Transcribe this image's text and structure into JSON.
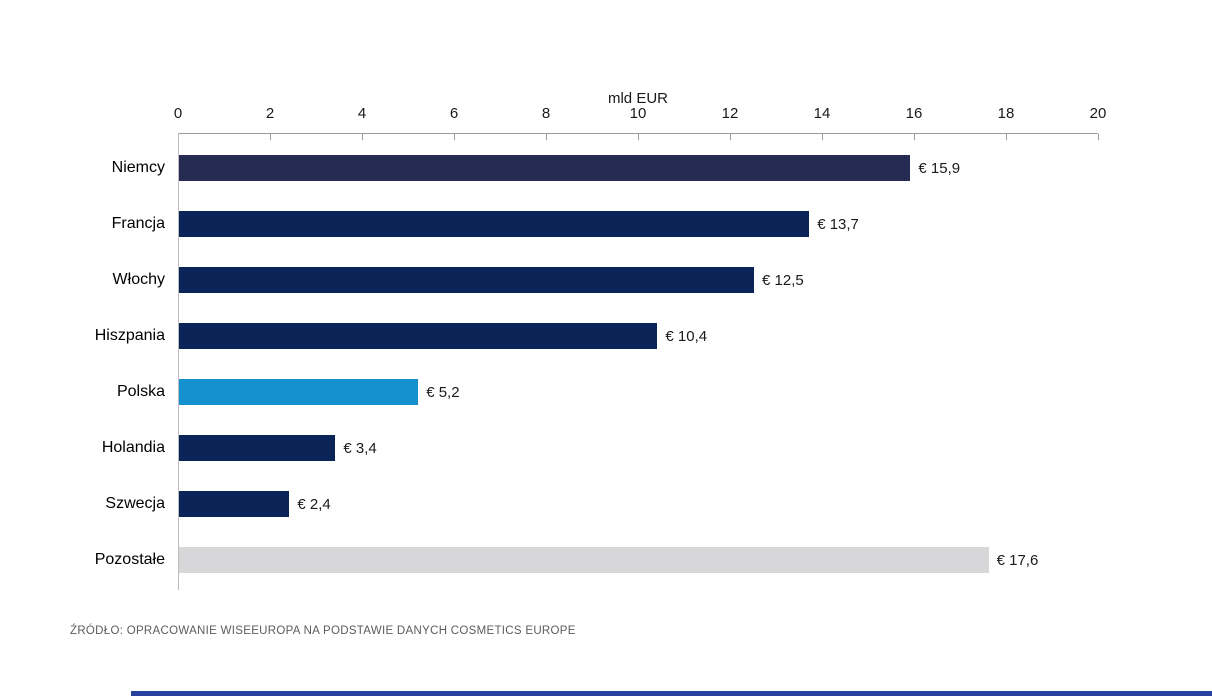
{
  "chart_data": {
    "type": "bar",
    "orientation": "horizontal",
    "axis_title": "mld EUR",
    "categories": [
      "Niemcy",
      "Francja",
      "Włochy",
      "Hiszpania",
      "Polska",
      "Holandia",
      "Szwecja",
      "Pozostałe"
    ],
    "values": [
      15.9,
      13.7,
      12.5,
      10.4,
      5.2,
      3.4,
      2.4,
      17.6
    ],
    "value_labels": [
      "€ 15,9",
      "€ 13,7",
      "€ 12,5",
      "€ 10,4",
      "€ 5,2",
      "€ 3,4",
      "€ 2,4",
      "€ 17,6"
    ],
    "xlim": [
      0,
      20
    ],
    "x_ticks": [
      0,
      2,
      4,
      6,
      8,
      10,
      12,
      14,
      16,
      18,
      20
    ],
    "grid": false,
    "legend": "none",
    "bar_colors": [
      "#252b53",
      "#0a2458",
      "#0a2458",
      "#0a2458",
      "#1591d0",
      "#0a2458",
      "#0a2458",
      "#d7d6d9"
    ],
    "highlight_category": "Polska",
    "highlight_color": "#1591d0",
    "other_category_color": "#d7d6d9",
    "default_bar_color": "#0a2458"
  },
  "source_note": "ŹRÓDŁO: OPRACOWANIE WISEEUROPA NA PODSTAWIE DANYCH COSMETICS EUROPE",
  "colors": {
    "background": "#ffffff",
    "axis_line": "#9b9b9b",
    "baseline": "#bdbdbd",
    "text": "#1a1a1a",
    "source_text": "#5c5c5c",
    "bottom_accent": "#27439f"
  }
}
